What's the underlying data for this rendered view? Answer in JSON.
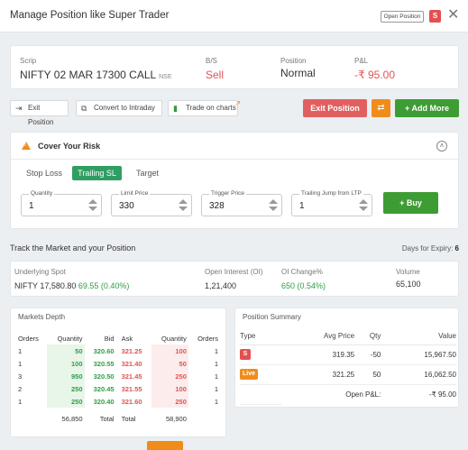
{
  "header": {
    "title": "Manage Position like Super Trader",
    "open_position_label": "Open Position",
    "badge": "S",
    "close": "✕"
  },
  "position": {
    "scrip_label": "Scrip",
    "scrip_name": "NIFTY 02 MAR 17300 CALL",
    "exchange": "NSE",
    "bs_label": "B/S",
    "bs_value": "Sell",
    "position_label": "Position",
    "position_value": "Normal",
    "pnl_label": "P&L",
    "pnl_value": "-₹ 95.00"
  },
  "actions": {
    "exit_position": "Exit Position",
    "convert": "Convert to Intraday",
    "trade_charts": "Trade on charts",
    "exit_primary": "Exit Position",
    "add_more": "+ Add More"
  },
  "risk": {
    "title": "Cover Your Risk",
    "tabs": [
      "Stop Loss",
      "Trailing SL",
      "Target"
    ],
    "active_tab": "Trailing SL",
    "fields": [
      {
        "label": "Quantity",
        "value": "1"
      },
      {
        "label": "Limit Price",
        "value": "330"
      },
      {
        "label": "Trigger Price",
        "value": "328"
      },
      {
        "label": "Trailing Jump from LTP",
        "value": "1"
      }
    ],
    "buy_label": "+ Buy"
  },
  "track": {
    "title": "Track the Market and your Position",
    "expiry_label": "Days for Expiry:",
    "expiry_value": "6"
  },
  "market": {
    "spot_label": "Underlying Spot",
    "spot_name": "NIFTY 17,580.80",
    "spot_change": "69.55 (0.40%)",
    "oi_label": "Open Interest (OI)",
    "oi_value": "1,21,400",
    "oi_change_label": "OI Change%",
    "oi_change_value": "650 (0.54%)",
    "volume_label": "Volume",
    "volume_value": "65,100"
  },
  "depth": {
    "title": "Markets Depth",
    "headers": [
      "Orders",
      "Quantity",
      "Bid",
      "Ask",
      "Quantity",
      "Orders"
    ],
    "rows": [
      {
        "bo": "1",
        "bq": "50",
        "bid": "320.60",
        "ask": "321.25",
        "aq": "100",
        "ao": "1"
      },
      {
        "bo": "1",
        "bq": "100",
        "bid": "320.55",
        "ask": "321.40",
        "aq": "50",
        "ao": "1"
      },
      {
        "bo": "3",
        "bq": "950",
        "bid": "320.50",
        "ask": "321.45",
        "aq": "250",
        "ao": "1"
      },
      {
        "bo": "2",
        "bq": "250",
        "bid": "320.45",
        "ask": "321.55",
        "aq": "100",
        "ao": "1"
      },
      {
        "bo": "1",
        "bq": "250",
        "bid": "320.40",
        "ask": "321.60",
        "aq": "250",
        "ao": "1"
      }
    ],
    "total_bid_qty": "56,850",
    "total_label": "Total",
    "total_label_2": "Total",
    "total_ask_qty": "58,900"
  },
  "summary": {
    "title": "Position Summary",
    "headers": [
      "Type",
      "Avg Price",
      "Qty",
      "Value"
    ],
    "rows": [
      {
        "type": "S",
        "avg": "319.35",
        "qty": "-50",
        "value": "15,967.50"
      },
      {
        "type": "Live",
        "avg": "321.25",
        "qty": "50",
        "value": "16,062.50"
      }
    ],
    "open_pnl_label": "Open P&L:",
    "open_pnl_value": "-₹ 95.00"
  }
}
